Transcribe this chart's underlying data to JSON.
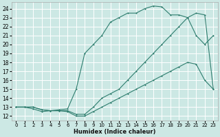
{
  "xlabel": "Humidex (Indice chaleur)",
  "bg_color": "#cce8e4",
  "grid_color": "#ffffff",
  "line_color": "#2e7d6e",
  "xlim": [
    -0.5,
    23.5
  ],
  "ylim": [
    11.5,
    24.7
  ],
  "xticks": [
    0,
    1,
    2,
    3,
    4,
    5,
    6,
    7,
    8,
    9,
    10,
    11,
    12,
    13,
    14,
    15,
    16,
    17,
    18,
    19,
    20,
    21,
    22,
    23
  ],
  "yticks": [
    12,
    13,
    14,
    15,
    16,
    17,
    18,
    19,
    20,
    21,
    22,
    23,
    24
  ],
  "curve_top_x": [
    0,
    1,
    2,
    3,
    4,
    5,
    6,
    7,
    8,
    9,
    10,
    11,
    12,
    13,
    14,
    15,
    16,
    17,
    18,
    19,
    20,
    21,
    22,
    23
  ],
  "curve_top_y": [
    13,
    13,
    12.8,
    12.5,
    12.6,
    12.7,
    12.8,
    15.0,
    19.0,
    20.0,
    21.0,
    22.5,
    23.0,
    23.5,
    23.5,
    24.0,
    24.3,
    24.2,
    23.3,
    23.3,
    23.0,
    21.0,
    20.0,
    21.0
  ],
  "curve_mid_x": [
    0,
    1,
    2,
    3,
    4,
    5,
    6,
    7,
    8,
    9,
    10,
    11,
    12,
    13,
    14,
    15,
    16,
    17,
    18,
    19,
    20,
    21,
    22,
    23
  ],
  "curve_mid_y": [
    13,
    13,
    13,
    12.7,
    12.6,
    12.6,
    12.6,
    12.2,
    12.2,
    13.0,
    14.0,
    14.5,
    15.0,
    16.0,
    17.0,
    18.0,
    19.0,
    20.0,
    21.0,
    22.0,
    23.0,
    23.5,
    23.3,
    15.0
  ],
  "curve_bot_x": [
    0,
    1,
    2,
    3,
    4,
    5,
    6,
    7,
    8,
    9,
    10,
    11,
    12,
    13,
    14,
    15,
    16,
    17,
    18,
    19,
    20,
    21,
    22,
    23
  ],
  "curve_bot_y": [
    13,
    13,
    13,
    12.7,
    12.6,
    12.6,
    12.5,
    12.0,
    12.0,
    12.5,
    13.0,
    13.5,
    14.0,
    14.5,
    15.0,
    15.5,
    16.0,
    16.5,
    17.0,
    17.5,
    18.0,
    17.8,
    16.0,
    15.0
  ]
}
